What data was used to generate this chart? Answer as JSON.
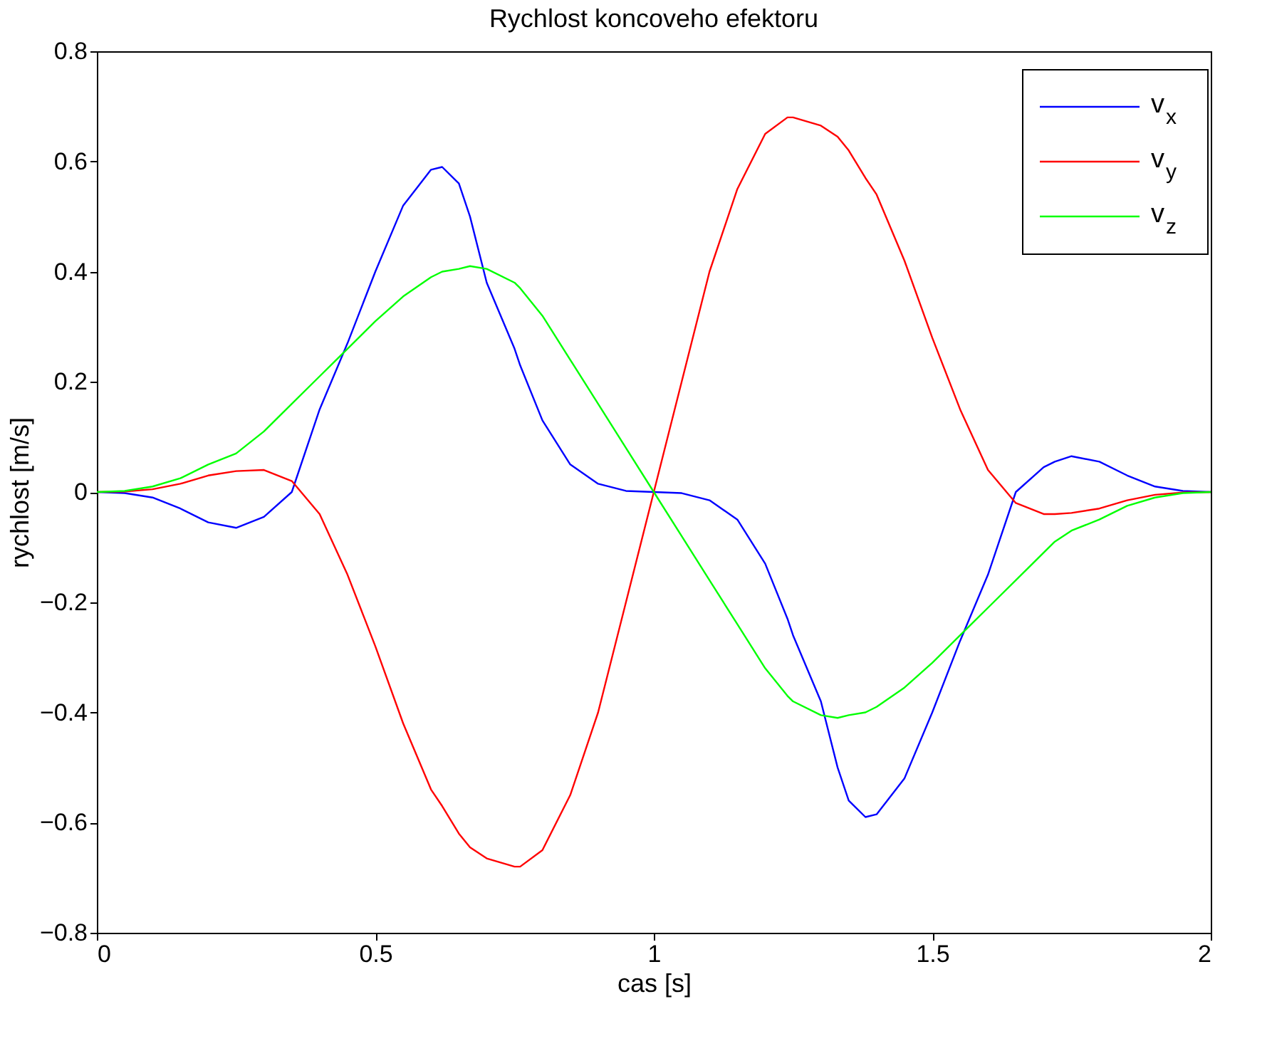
{
  "chart_data": {
    "type": "line",
    "title": "Rychlost koncoveho efektoru",
    "xlabel": "cas [s]",
    "ylabel": "rychlost [m/s]",
    "x": [
      0,
      0.05,
      0.1,
      0.15,
      0.2,
      0.25,
      0.3,
      0.35,
      0.4,
      0.45,
      0.5,
      0.55,
      0.6,
      0.62,
      0.65,
      0.67,
      0.7,
      0.75,
      0.76,
      0.8,
      0.85,
      0.9,
      0.95,
      1.0,
      1.05,
      1.1,
      1.15,
      1.2,
      1.24,
      1.25,
      1.3,
      1.33,
      1.35,
      1.38,
      1.4,
      1.45,
      1.5,
      1.55,
      1.6,
      1.65,
      1.7,
      1.72,
      1.75,
      1.8,
      1.85,
      1.9,
      1.95,
      2.0
    ],
    "series": [
      {
        "name": "v$_{x}$",
        "color": "#0000ff",
        "values": [
          0,
          -0.002,
          -0.01,
          -0.03,
          -0.055,
          -0.065,
          -0.045,
          0.0,
          0.15,
          0.27,
          0.4,
          0.52,
          0.585,
          0.59,
          0.56,
          0.5,
          0.38,
          0.26,
          0.23,
          0.13,
          0.05,
          0.015,
          0.002,
          0,
          -0.002,
          -0.015,
          -0.05,
          -0.13,
          -0.23,
          -0.26,
          -0.38,
          -0.5,
          -0.56,
          -0.59,
          -0.585,
          -0.52,
          -0.4,
          -0.27,
          -0.15,
          0.0,
          0.045,
          0.055,
          0.065,
          0.055,
          0.03,
          0.01,
          0.002,
          0
        ]
      },
      {
        "name": "v$_{y}$",
        "color": "#ff0000",
        "values": [
          0,
          0.001,
          0.005,
          0.015,
          0.03,
          0.038,
          0.04,
          0.02,
          -0.04,
          -0.15,
          -0.28,
          -0.42,
          -0.54,
          -0.57,
          -0.62,
          -0.645,
          -0.665,
          -0.68,
          -0.68,
          -0.65,
          -0.55,
          -0.4,
          -0.2,
          0,
          0.2,
          0.4,
          0.55,
          0.65,
          0.68,
          0.68,
          0.665,
          0.645,
          0.62,
          0.57,
          0.54,
          0.42,
          0.28,
          0.15,
          0.04,
          -0.02,
          -0.04,
          -0.04,
          -0.038,
          -0.03,
          -0.015,
          -0.005,
          -0.001,
          0
        ]
      },
      {
        "name": "v$_{z}$",
        "color": "#00ff00",
        "values": [
          0,
          0.002,
          0.01,
          0.025,
          0.05,
          0.07,
          0.11,
          0.16,
          0.21,
          0.26,
          0.31,
          0.355,
          0.39,
          0.4,
          0.405,
          0.41,
          0.405,
          0.38,
          0.37,
          0.32,
          0.24,
          0.16,
          0.08,
          0,
          -0.08,
          -0.16,
          -0.24,
          -0.32,
          -0.37,
          -0.38,
          -0.405,
          -0.41,
          -0.405,
          -0.4,
          -0.39,
          -0.355,
          -0.31,
          -0.26,
          -0.21,
          -0.16,
          -0.11,
          -0.09,
          -0.07,
          -0.05,
          -0.025,
          -0.01,
          -0.002,
          0
        ]
      }
    ],
    "xlim": [
      0,
      2
    ],
    "xticks": [
      {
        "value": 0,
        "label": "0"
      },
      0.5,
      {
        "value": 1,
        "label": "1"
      },
      1.5,
      {
        "value": 2,
        "label": "2"
      }
    ],
    "ylim": [
      -0.8,
      0.8
    ],
    "yticks": [
      -0.8,
      -0.6,
      -0.4,
      -0.2,
      {
        "value": 0,
        "label": "0"
      },
      0.2,
      0.4,
      0.6,
      0.8
    ],
    "legend": "top right",
    "grid": false,
    "marker": "none",
    "line_style": "solid"
  }
}
